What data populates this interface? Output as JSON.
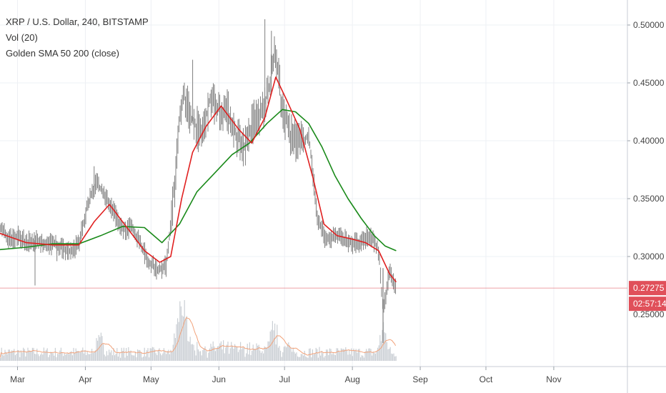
{
  "legend": {
    "symbol_line": "XRP / U.S. Dollar, 240, BITSTAMP",
    "volume_line": "Vol (20)",
    "indicator_line": "Golden SMA 50 200 (close)"
  },
  "price_axis": {
    "tick_labels": [
      "0.50000",
      "0.45000",
      "0.40000",
      "0.35000",
      "0.30000"
    ],
    "last_price_label": "0.27275",
    "countdown_label": "02:57:14",
    "hidden_tick_fragment": "0.25000"
  },
  "colors": {
    "candles": "#8a8a8a",
    "sma_fast": "#e02020",
    "sma_slow": "#1a8a1a",
    "grid": "#eef0f4",
    "last_price": "#e0505a",
    "volume": "#b8bfc6",
    "volume_ma": "#f2a27a"
  },
  "chart_data": {
    "type": "line",
    "title": "XRP / U.S. Dollar, 240, BITSTAMP",
    "xlabel": "",
    "ylabel": "",
    "ylim": [
      0.23,
      0.515
    ],
    "grid": true,
    "x_tick_labels": [
      "Mar",
      "Apr",
      "May",
      "Jun",
      "Jul",
      "Aug",
      "Sep",
      "Oct",
      "Nov"
    ],
    "series": [
      {
        "name": "price",
        "x": [
          "2019-02-21",
          "2019-02-25",
          "2019-03-01",
          "2019-03-05",
          "2019-03-09",
          "2019-03-13",
          "2019-03-17",
          "2019-03-21",
          "2019-03-25",
          "2019-03-29",
          "2019-04-02",
          "2019-04-06",
          "2019-04-10",
          "2019-04-14",
          "2019-04-18",
          "2019-04-22",
          "2019-04-26",
          "2019-04-30",
          "2019-05-04",
          "2019-05-08",
          "2019-05-12",
          "2019-05-14",
          "2019-05-16",
          "2019-05-20",
          "2019-05-24",
          "2019-05-28",
          "2019-06-01",
          "2019-06-05",
          "2019-06-09",
          "2019-06-13",
          "2019-06-17",
          "2019-06-21",
          "2019-06-24",
          "2019-06-27",
          "2019-06-30",
          "2019-07-04",
          "2019-07-08",
          "2019-07-12",
          "2019-07-16",
          "2019-07-20",
          "2019-07-24",
          "2019-07-28",
          "2019-08-01",
          "2019-08-05",
          "2019-08-09",
          "2019-08-13",
          "2019-08-15",
          "2019-08-18",
          "2019-08-21"
        ],
        "values": [
          0.325,
          0.315,
          0.318,
          0.312,
          0.314,
          0.31,
          0.311,
          0.308,
          0.305,
          0.31,
          0.345,
          0.365,
          0.352,
          0.338,
          0.323,
          0.325,
          0.312,
          0.294,
          0.289,
          0.292,
          0.365,
          0.415,
          0.44,
          0.417,
          0.405,
          0.435,
          0.428,
          0.425,
          0.405,
          0.395,
          0.418,
          0.425,
          0.445,
          0.478,
          0.425,
          0.405,
          0.397,
          0.405,
          0.335,
          0.314,
          0.318,
          0.315,
          0.312,
          0.311,
          0.319,
          0.305,
          0.255,
          0.285,
          0.275
        ]
      },
      {
        "name": "SMA 50",
        "x": [
          "2019-02-21",
          "2019-03-05",
          "2019-03-17",
          "2019-03-29",
          "2019-04-05",
          "2019-04-12",
          "2019-04-20",
          "2019-04-28",
          "2019-05-05",
          "2019-05-10",
          "2019-05-15",
          "2019-05-20",
          "2019-05-26",
          "2019-06-02",
          "2019-06-10",
          "2019-06-16",
          "2019-06-22",
          "2019-06-27",
          "2019-07-02",
          "2019-07-08",
          "2019-07-14",
          "2019-07-19",
          "2019-07-25",
          "2019-08-01",
          "2019-08-07",
          "2019-08-13",
          "2019-08-18",
          "2019-08-21"
        ],
        "values": [
          0.32,
          0.312,
          0.31,
          0.31,
          0.33,
          0.345,
          0.325,
          0.305,
          0.295,
          0.3,
          0.35,
          0.39,
          0.412,
          0.43,
          0.41,
          0.398,
          0.42,
          0.455,
          0.435,
          0.41,
          0.368,
          0.328,
          0.318,
          0.315,
          0.312,
          0.305,
          0.285,
          0.278
        ]
      },
      {
        "name": "SMA 200",
        "x": [
          "2019-02-21",
          "2019-03-05",
          "2019-03-17",
          "2019-03-29",
          "2019-04-08",
          "2019-04-18",
          "2019-04-28",
          "2019-05-06",
          "2019-05-14",
          "2019-05-22",
          "2019-05-30",
          "2019-06-07",
          "2019-06-15",
          "2019-06-23",
          "2019-06-30",
          "2019-07-06",
          "2019-07-12",
          "2019-07-18",
          "2019-07-24",
          "2019-07-30",
          "2019-08-05",
          "2019-08-11",
          "2019-08-16",
          "2019-08-21"
        ],
        "values": [
          0.306,
          0.308,
          0.311,
          0.311,
          0.318,
          0.326,
          0.325,
          0.312,
          0.328,
          0.356,
          0.372,
          0.388,
          0.398,
          0.415,
          0.427,
          0.425,
          0.415,
          0.395,
          0.37,
          0.35,
          0.333,
          0.318,
          0.309,
          0.305
        ]
      }
    ],
    "volume_spikes": [
      {
        "x": "2019-04-07",
        "value": 0.35
      },
      {
        "x": "2019-05-14",
        "value": 0.85
      },
      {
        "x": "2019-05-17",
        "value": 0.55
      },
      {
        "x": "2019-06-26",
        "value": 0.45
      },
      {
        "x": "2019-08-15",
        "value": 0.5
      }
    ],
    "last_price": 0.27275
  }
}
